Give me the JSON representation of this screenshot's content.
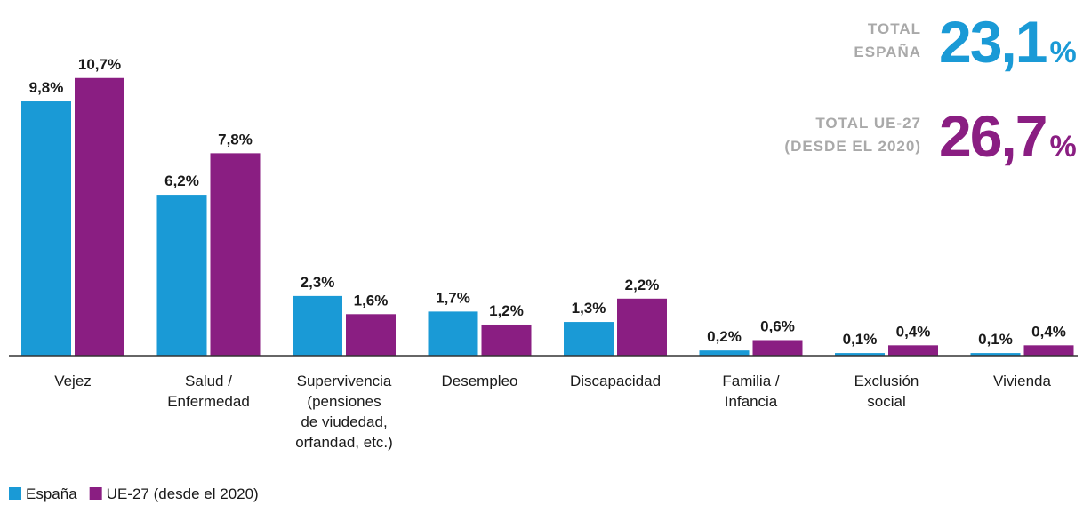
{
  "chart_data": {
    "type": "bar",
    "categories": [
      [
        "Vejez"
      ],
      [
        "Salud /",
        "Enfermedad"
      ],
      [
        "Supervivencia",
        "(pensiones",
        "de viudedad,",
        "orfandad, etc.)"
      ],
      [
        "Desempleo"
      ],
      [
        "Discapacidad"
      ],
      [
        "Familia /",
        "Infancia"
      ],
      [
        "Exclusión",
        "social"
      ],
      [
        "Vivienda"
      ]
    ],
    "series": [
      {
        "name": "España",
        "color": "#1a9ad6",
        "values": [
          9.8,
          6.2,
          2.3,
          1.7,
          1.3,
          0.2,
          0.1,
          0.1
        ],
        "value_labels": [
          "9,8%",
          "6,2%",
          "2,3%",
          "1,7%",
          "1,3%",
          "0,2%",
          "0,1%",
          "0,1%"
        ]
      },
      {
        "name": "UE-27 (desde el 2020)",
        "color": "#8a1e82",
        "values": [
          10.7,
          7.8,
          1.6,
          1.2,
          2.2,
          0.6,
          0.4,
          0.4
        ],
        "value_labels": [
          "10,7%",
          "7,8%",
          "1,6%",
          "1,2%",
          "2,2%",
          "0,6%",
          "0,4%",
          "0,4%"
        ]
      }
    ],
    "ylim": [
      0,
      11
    ],
    "totals": [
      {
        "label": [
          "TOTAL",
          "ESPAÑA"
        ],
        "value_text": "23,1",
        "unit": "%",
        "color": "#1a9ad6"
      },
      {
        "label": [
          "TOTAL UE-27",
          "(DESDE EL 2020)"
        ],
        "value_text": "26,7",
        "unit": "%",
        "color": "#8a1e82"
      }
    ],
    "legend": "bottom-left"
  }
}
